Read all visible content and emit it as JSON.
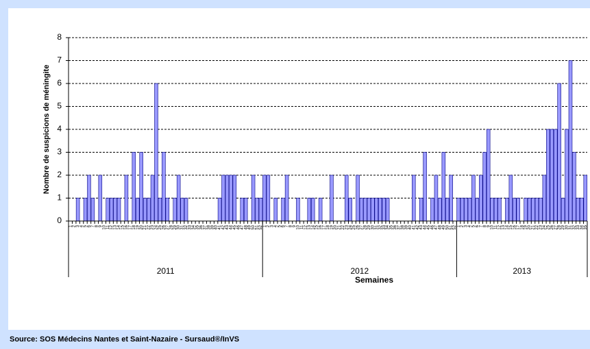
{
  "chart_data": {
    "type": "bar",
    "ylabel": "Nombre de suspicions de méningite",
    "xlabel": "Semaines",
    "source": "Source: SOS Médecins Nantes et Saint-Nazaire - Sursaud®/InVS",
    "color": "#9999ff",
    "ylim": [
      0,
      8
    ],
    "yticks": [
      0,
      1,
      2,
      3,
      4,
      5,
      6,
      7,
      8
    ],
    "grid": true,
    "x_groups": [
      {
        "label": "2011",
        "count": 52
      },
      {
        "label": "2012",
        "count": 52
      },
      {
        "label": "2013",
        "count": 35
      }
    ],
    "categories": [
      1,
      2,
      3,
      4,
      5,
      6,
      7,
      8,
      9,
      10,
      11,
      12,
      13,
      14,
      15,
      16,
      17,
      18,
      19,
      20,
      21,
      22,
      23,
      24,
      25,
      26,
      27,
      28,
      29,
      30,
      31,
      32,
      33,
      34,
      35,
      36,
      37,
      38,
      39,
      40,
      41,
      42,
      43,
      44,
      45,
      46,
      47,
      48,
      49,
      50,
      51,
      52,
      1,
      2,
      3,
      4,
      5,
      6,
      7,
      8,
      9,
      10,
      11,
      12,
      13,
      14,
      15,
      16,
      17,
      18,
      19,
      20,
      21,
      22,
      23,
      24,
      25,
      26,
      27,
      28,
      29,
      30,
      31,
      32,
      33,
      34,
      35,
      36,
      37,
      38,
      39,
      40,
      41,
      42,
      43,
      44,
      45,
      46,
      47,
      48,
      49,
      50,
      51,
      52,
      1,
      2,
      3,
      4,
      5,
      6,
      7,
      8,
      9,
      10,
      11,
      12,
      13,
      14,
      15,
      16,
      17,
      18,
      19,
      20,
      21,
      22,
      23,
      24,
      25,
      26,
      27,
      28,
      29,
      30,
      31,
      32,
      33,
      34,
      35
    ],
    "values": [
      0,
      0,
      1,
      0,
      1,
      2,
      1,
      0,
      2,
      0,
      1,
      1,
      1,
      1,
      0,
      2,
      0,
      3,
      1,
      3,
      1,
      1,
      2,
      6,
      1,
      3,
      1,
      0,
      1,
      2,
      1,
      1,
      0,
      0,
      0,
      0,
      0,
      0,
      0,
      0,
      1,
      2,
      2,
      2,
      2,
      0,
      1,
      1,
      0,
      2,
      1,
      1,
      2,
      2,
      0,
      1,
      0,
      1,
      2,
      0,
      0,
      1,
      0,
      0,
      1,
      1,
      0,
      1,
      0,
      0,
      2,
      0,
      0,
      0,
      2,
      1,
      0,
      2,
      1,
      1,
      1,
      1,
      1,
      1,
      1,
      1,
      0,
      0,
      0,
      0,
      0,
      0,
      2,
      0,
      1,
      3,
      0,
      1,
      2,
      1,
      3,
      1,
      2,
      0,
      1,
      1,
      1,
      1,
      2,
      1,
      2,
      3,
      4,
      1,
      1,
      1,
      0,
      1,
      2,
      1,
      1,
      0,
      1,
      1,
      1,
      1,
      1,
      2,
      4,
      4,
      4,
      6,
      1,
      4,
      7,
      3,
      1,
      1,
      2
    ]
  }
}
